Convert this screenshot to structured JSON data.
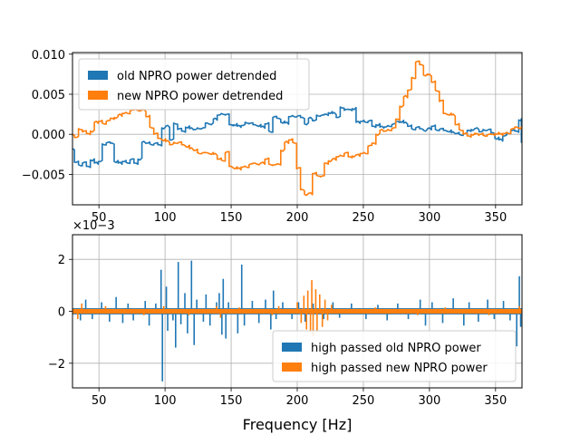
{
  "colors": {
    "old": "#1f77b4",
    "new": "#ff7f0e",
    "grid": "#b0b0b0",
    "frame": "#000000"
  },
  "chart_data": [
    {
      "type": "line",
      "xlabel": "",
      "ylabel": "",
      "xlim": [
        30,
        370
      ],
      "ylim": [
        -0.0088,
        0.0102
      ],
      "x_ticks": [
        50,
        100,
        150,
        200,
        250,
        300,
        350
      ],
      "x_tick_labels": [
        "50",
        "100",
        "150",
        "200",
        "250",
        "300",
        "350"
      ],
      "y_ticks": [
        -0.005,
        0.0,
        0.005,
        0.01
      ],
      "y_tick_labels": [
        "−0.005",
        "0.000",
        "0.005",
        "0.010"
      ],
      "grid": true,
      "legend_position": "top-left",
      "series": [
        {
          "name": "old NPRO power detrended",
          "color": "#1f77b4",
          "x": [
            30,
            33,
            36,
            39,
            42,
            45,
            48,
            51,
            54,
            57,
            60,
            63,
            66,
            69,
            72,
            75,
            78,
            81,
            84,
            87,
            90,
            93,
            96,
            99,
            102,
            105,
            108,
            111,
            114,
            117,
            120,
            123,
            126,
            129,
            132,
            135,
            138,
            141,
            144,
            147,
            150,
            153,
            156,
            159,
            162,
            165,
            168,
            171,
            174,
            177,
            180,
            183,
            186,
            189,
            192,
            195,
            198,
            201,
            204,
            207,
            210,
            213,
            216,
            219,
            222,
            225,
            228,
            231,
            234,
            237,
            240,
            243,
            246,
            249,
            252,
            255,
            258,
            261,
            264,
            267,
            270,
            273,
            276,
            279,
            282,
            285,
            288,
            291,
            294,
            297,
            300,
            303,
            306,
            309,
            312,
            315,
            318,
            321,
            324,
            327,
            330,
            333,
            336,
            339,
            342,
            345,
            348,
            351,
            354,
            357,
            360,
            363,
            366,
            369,
            370
          ],
          "values": [
            -0.0018,
            -0.0035,
            -0.0038,
            -0.0036,
            -0.004,
            -0.0032,
            -0.0036,
            -0.0034,
            -0.0012,
            -0.0011,
            -0.0011,
            -0.0034,
            -0.0036,
            -0.0034,
            -0.0035,
            -0.0032,
            -0.0036,
            -0.0031,
            -0.001,
            -0.0011,
            -0.0012,
            -0.0012,
            -0.0013,
            0.0008,
            0.001,
            -0.0007,
            0.0014,
            0.0006,
            0.0004,
            0.0009,
            0.0007,
            0.0006,
            0.0008,
            0.0007,
            0.0014,
            0.0013,
            0.0019,
            0.0024,
            0.0026,
            0.0024,
            0.0012,
            0.0012,
            0.001,
            0.0011,
            0.0015,
            0.0013,
            0.0012,
            0.0011,
            0.0009,
            0.0013,
            0.0004,
            0.0021,
            0.002,
            0.0015,
            0.0014,
            0.0022,
            0.0023,
            0.0022,
            0.0021,
            0.0013,
            0.002,
            0.0017,
            0.0024,
            0.0023,
            0.0025,
            0.0027,
            0.0026,
            0.0021,
            0.0034,
            0.003,
            0.0031,
            0.0032,
            0.0015,
            0.0016,
            0.0016,
            0.0016,
            0.001,
            0.0012,
            0.0009,
            0.0009,
            0.0011,
            0.0012,
            0.0016,
            0.0016,
            0.0014,
            0.001,
            0.0007,
            0.0008,
            0.0007,
            0.0005,
            0.0007,
            0.001,
            0.0006,
            0.0006,
            0.0005,
            0.0004,
            0.0002,
            0.0001,
            0.0,
            0.0,
            0.0005,
            0.0006,
            0.0007,
            0.0003,
            0.0006,
            0.0005,
            0.0002,
            -0.0005,
            -0.0007,
            -0.0002,
            0.0002,
            0.0004,
            0.0004,
            0.0018,
            -0.001
          ]
        },
        {
          "name": "new NPRO power detrended",
          "color": "#ff7f0e",
          "x": [
            30,
            33,
            36,
            39,
            42,
            45,
            48,
            51,
            54,
            57,
            60,
            63,
            66,
            69,
            72,
            75,
            78,
            81,
            84,
            87,
            90,
            93,
            96,
            99,
            102,
            105,
            108,
            111,
            114,
            117,
            120,
            123,
            126,
            129,
            132,
            135,
            138,
            141,
            144,
            147,
            150,
            153,
            156,
            159,
            162,
            165,
            168,
            171,
            174,
            177,
            180,
            183,
            186,
            189,
            192,
            195,
            198,
            201,
            204,
            207,
            210,
            213,
            216,
            219,
            222,
            225,
            228,
            231,
            234,
            237,
            240,
            243,
            246,
            249,
            252,
            255,
            258,
            261,
            264,
            267,
            270,
            273,
            276,
            279,
            282,
            285,
            288,
            291,
            294,
            297,
            300,
            303,
            306,
            309,
            312,
            315,
            318,
            321,
            324,
            327,
            330,
            333,
            336,
            339,
            342,
            345,
            348,
            351,
            354,
            357,
            360,
            363,
            366,
            369,
            370
          ],
          "values": [
            0.0,
            -0.0004,
            0.0007,
            0.0003,
            0.0001,
            0.0004,
            0.0015,
            0.0016,
            0.0014,
            0.0016,
            0.002,
            0.0021,
            0.0024,
            0.0026,
            0.0027,
            0.0029,
            0.0031,
            0.003,
            0.003,
            0.0022,
            0.0009,
            0.0,
            -0.0005,
            -0.0007,
            -0.0009,
            -0.0013,
            -0.001,
            -0.0011,
            -0.0013,
            -0.0015,
            -0.0018,
            -0.002,
            -0.0023,
            -0.0024,
            -0.0023,
            -0.0024,
            -0.0025,
            -0.0031,
            -0.0032,
            -0.0023,
            -0.004,
            -0.0042,
            -0.0043,
            -0.0041,
            -0.004,
            -0.0038,
            -0.0036,
            -0.0037,
            -0.0036,
            -0.0031,
            -0.0037,
            -0.0039,
            -0.0037,
            -0.002,
            -0.001,
            -0.0007,
            -0.001,
            -0.0043,
            -0.0069,
            -0.0075,
            -0.0074,
            -0.0049,
            -0.0051,
            -0.0053,
            -0.0036,
            -0.0033,
            -0.0031,
            -0.0028,
            -0.0026,
            -0.0024,
            -0.0028,
            -0.0027,
            -0.0026,
            -0.0024,
            -0.0023,
            -0.0015,
            -0.0011,
            0.0,
            0.0005,
            0.0004,
            0.0006,
            0.0007,
            0.0019,
            0.0035,
            0.0047,
            0.0055,
            0.0071,
            0.009,
            0.0087,
            0.0074,
            0.0074,
            0.0065,
            0.0055,
            0.0041,
            0.0026,
            0.0025,
            0.0024,
            0.0012,
            0.0006,
            0.0,
            -0.0002,
            0.0,
            0.0,
            0.0,
            -0.0001,
            -0.0001,
            0.0,
            0.0001,
            0.0,
            0.0001,
            0.0002,
            0.0006,
            0.0009,
            0.0008,
            0.0008
          ]
        }
      ]
    },
    {
      "type": "line",
      "xlabel": "Frequency [Hz]",
      "ylabel": "",
      "offset_text": "×10−3",
      "xlim": [
        30,
        370
      ],
      "ylim": [
        -2.95,
        2.95
      ],
      "x_ticks": [
        50,
        100,
        150,
        200,
        250,
        300,
        350
      ],
      "x_tick_labels": [
        "50",
        "100",
        "150",
        "200",
        "250",
        "300",
        "350"
      ],
      "y_ticks": [
        -2,
        0,
        2
      ],
      "y_tick_labels": [
        "−2",
        "0",
        "2"
      ],
      "grid": true,
      "legend_position": "bottom-right",
      "series": [
        {
          "name": "high passed old NPRO power",
          "color": "#1f77b4",
          "spikes": [
            [
              36,
              -0.35
            ],
            [
              40,
              0.45
            ],
            [
              45,
              -0.3
            ],
            [
              52,
              0.35
            ],
            [
              58,
              -0.4
            ],
            [
              63,
              0.55
            ],
            [
              68,
              -0.45
            ],
            [
              72,
              0.3
            ],
            [
              76,
              -0.35
            ],
            [
              85,
              0.4
            ],
            [
              88,
              -0.55
            ],
            [
              93,
              0.3
            ],
            [
              97,
              1.6
            ],
            [
              98,
              -2.7
            ],
            [
              101,
              0.95
            ],
            [
              102,
              -0.75
            ],
            [
              106,
              -0.35
            ],
            [
              108,
              -1.4
            ],
            [
              110,
              1.9
            ],
            [
              112,
              -0.5
            ],
            [
              115,
              0.7
            ],
            [
              117,
              -0.85
            ],
            [
              120,
              1.95
            ],
            [
              122,
              -1.3
            ],
            [
              124,
              0.45
            ],
            [
              129,
              -0.4
            ],
            [
              131,
              0.65
            ],
            [
              134,
              -0.55
            ],
            [
              139,
              0.35
            ],
            [
              141,
              0.7
            ],
            [
              143,
              -0.9
            ],
            [
              144,
              1.25
            ],
            [
              146,
              -1.05
            ],
            [
              148,
              0.35
            ],
            [
              155,
              -0.85
            ],
            [
              158,
              1.8
            ],
            [
              160,
              -0.55
            ],
            [
              166,
              0.4
            ],
            [
              171,
              -0.45
            ],
            [
              176,
              0.45
            ],
            [
              180,
              -0.7
            ],
            [
              182,
              0.8
            ],
            [
              184,
              -0.3
            ],
            [
              189,
              0.35
            ],
            [
              196,
              -0.3
            ],
            [
              201,
              0.35
            ],
            [
              206,
              -0.4
            ],
            [
              212,
              0.3
            ],
            [
              220,
              -0.3
            ],
            [
              227,
              0.35
            ],
            [
              232,
              -0.25
            ],
            [
              241,
              0.3
            ],
            [
              252,
              -0.3
            ],
            [
              261,
              0.25
            ],
            [
              268,
              -0.35
            ],
            [
              276,
              0.3
            ],
            [
              284,
              -0.3
            ],
            [
              293,
              0.45
            ],
            [
              297,
              -0.55
            ],
            [
              302,
              0.35
            ],
            [
              310,
              -0.45
            ],
            [
              318,
              0.5
            ],
            [
              326,
              -0.55
            ],
            [
              330,
              0.35
            ],
            [
              337,
              -0.4
            ],
            [
              344,
              0.45
            ],
            [
              349,
              -0.3
            ],
            [
              356,
              0.4
            ],
            [
              361,
              -0.35
            ],
            [
              366,
              -1.35
            ],
            [
              368,
              1.35
            ],
            [
              369,
              -0.6
            ]
          ]
        },
        {
          "name": "high passed new NPRO power",
          "color": "#ff7f0e",
          "spikes": [
            [
              34,
              -0.3
            ],
            [
              37,
              0.3
            ],
            [
              55,
              0.2
            ],
            [
              84,
              -0.15
            ],
            [
              99,
              0.2
            ],
            [
              118,
              -0.15
            ],
            [
              139,
              0.2
            ],
            [
              142,
              -0.25
            ],
            [
              156,
              0.15
            ],
            [
              181,
              -0.15
            ],
            [
              186,
              0.2
            ],
            [
              200,
              0.35
            ],
            [
              203,
              -0.45
            ],
            [
              205,
              0.6
            ],
            [
              207,
              -0.7
            ],
            [
              208,
              0.8
            ],
            [
              210,
              -0.8
            ],
            [
              211,
              1.2
            ],
            [
              212,
              -0.95
            ],
            [
              214,
              0.85
            ],
            [
              215,
              -0.8
            ],
            [
              217,
              0.65
            ],
            [
              219,
              -0.6
            ],
            [
              221,
              0.45
            ],
            [
              223,
              -0.35
            ],
            [
              226,
              0.25
            ],
            [
              259,
              0.15
            ],
            [
              291,
              -0.15
            ],
            [
              312,
              0.15
            ],
            [
              345,
              -0.15
            ],
            [
              368,
              0.2
            ]
          ]
        }
      ]
    }
  ]
}
